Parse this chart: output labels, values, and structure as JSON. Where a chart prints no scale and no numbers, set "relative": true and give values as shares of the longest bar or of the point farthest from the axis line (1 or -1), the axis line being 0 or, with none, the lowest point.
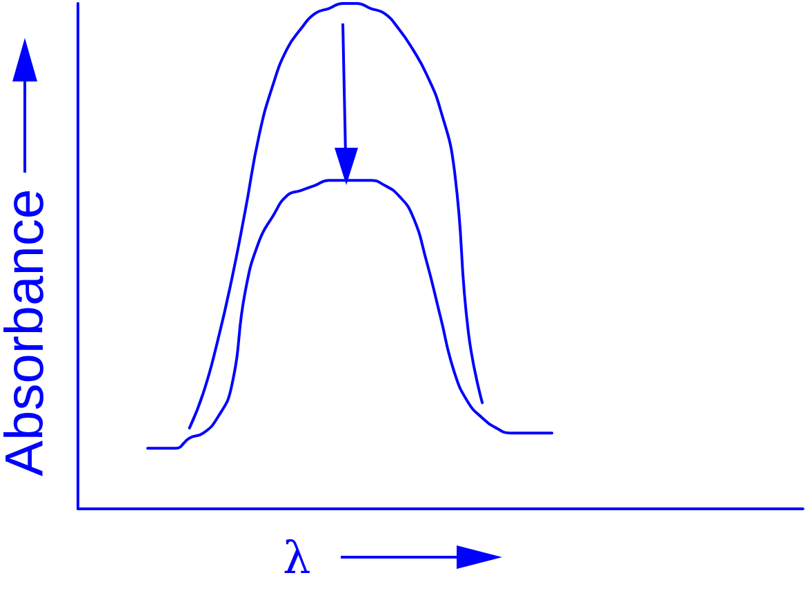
{
  "chart_data": {
    "type": "line",
    "relative": true,
    "xlabel": "λ",
    "ylabel": "Absorbance",
    "marker": "none",
    "grid": false,
    "categories": [
      null,
      null,
      null,
      null,
      null,
      null,
      null,
      null,
      null,
      null,
      null,
      null,
      null,
      null,
      null,
      null,
      null,
      null,
      null,
      null,
      null,
      null,
      null,
      null,
      null,
      null,
      null,
      null,
      null,
      null,
      null,
      null,
      null,
      null,
      null,
      null,
      null,
      null,
      null,
      null,
      null,
      null,
      null,
      null,
      null,
      null,
      null,
      null,
      null,
      null,
      null,
      null,
      null
    ],
    "series": [
      {
        "color": "#0000ff",
        "values": [
          null,
          null,
          null,
          null,
          null,
          null,
          null,
          null,
          0.16,
          0.23,
          0.33,
          0.45,
          0.59,
          0.74,
          0.84,
          0.91,
          0.95,
          0.98,
          0.99,
          1.0,
          1.0,
          0.99,
          0.98,
          0.95,
          0.91,
          0.86,
          0.79,
          0.67,
          0.35,
          0.21,
          null,
          null,
          null,
          null,
          null,
          null,
          null,
          null,
          null,
          null,
          null,
          null,
          null,
          null,
          null,
          null,
          null,
          null,
          null,
          null,
          null,
          null,
          null
        ]
      },
      {
        "color": "#0000ff",
        "values": [
          null,
          null,
          null,
          null,
          null,
          0.12,
          0.12,
          0.12,
          0.14,
          0.15,
          0.18,
          0.24,
          0.43,
          0.53,
          0.58,
          0.62,
          0.63,
          0.64,
          0.65,
          0.65,
          0.65,
          0.65,
          0.64,
          0.62,
          0.58,
          0.49,
          0.38,
          0.27,
          0.21,
          0.18,
          0.16,
          0.15,
          0.15,
          0.15,
          0.15,
          null,
          null,
          null,
          null,
          null,
          null,
          null,
          null,
          null,
          null,
          null,
          null,
          null,
          null,
          null,
          null,
          null,
          null
        ]
      }
    ]
  }
}
